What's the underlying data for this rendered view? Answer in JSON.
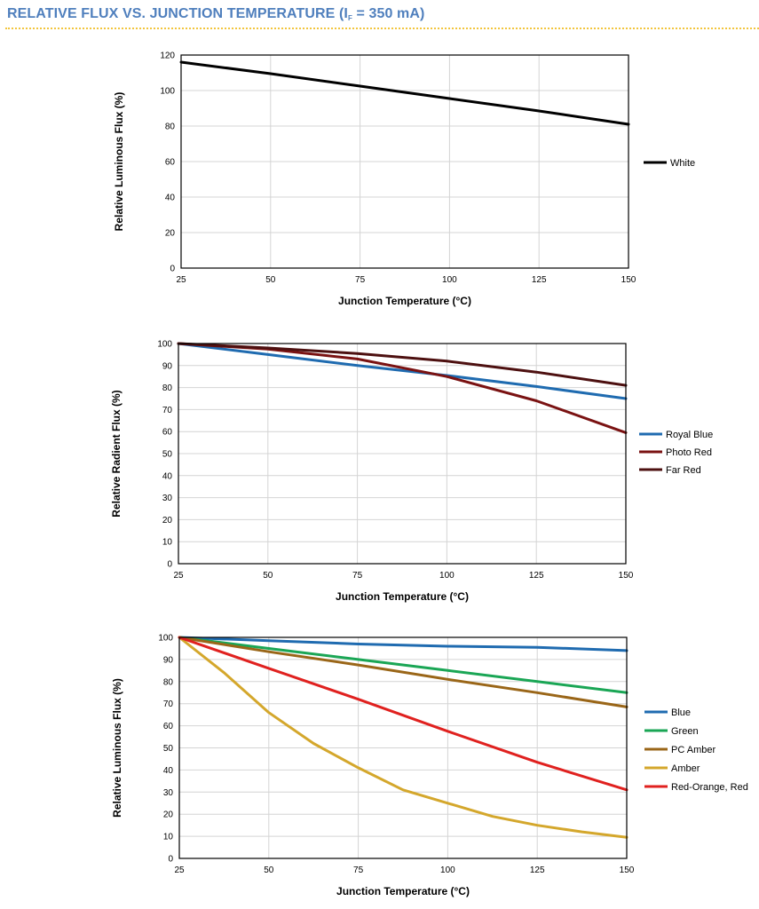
{
  "header": {
    "title_main": "RELATIVE FLUX VS. JUNCTION TEMPERATURE (I",
    "title_sub": "F",
    "title_end": " = 350 mA)",
    "rule_color": "#f2c53d",
    "title_color": "#4f7fbd"
  },
  "chart_data": [
    {
      "type": "line",
      "title": "",
      "xlabel": "Junction Temperature (°C)",
      "ylabel": "Relative Luminous Flux (%)",
      "xlim": [
        25,
        150
      ],
      "ylim": [
        0,
        120
      ],
      "xticks": [
        25,
        50,
        75,
        100,
        125,
        150
      ],
      "yticks": [
        0,
        20,
        40,
        60,
        80,
        100,
        120
      ],
      "grid": true,
      "legend": "right",
      "series": [
        {
          "name": "White",
          "color": "#000000",
          "x": [
            25,
            50,
            75,
            100,
            125,
            150
          ],
          "y": [
            116,
            109.5,
            102.5,
            95.5,
            88.5,
            81
          ]
        }
      ]
    },
    {
      "type": "line",
      "title": "",
      "xlabel": "Junction Temperature (°C)",
      "ylabel": "Relative Radient Flux (%)",
      "xlim": [
        25,
        150
      ],
      "ylim": [
        0,
        100
      ],
      "xticks": [
        25,
        50,
        75,
        100,
        125,
        150
      ],
      "yticks": [
        0,
        10,
        20,
        30,
        40,
        50,
        60,
        70,
        80,
        90,
        100
      ],
      "grid": true,
      "legend": "right",
      "series": [
        {
          "name": "Royal Blue",
          "color": "#1f6bb0",
          "x": [
            25,
            50,
            75,
            100,
            125,
            150
          ],
          "y": [
            100,
            95,
            90,
            85.5,
            80.5,
            75
          ]
        },
        {
          "name": "Photo Red",
          "color": "#7a1212",
          "x": [
            25,
            50,
            75,
            100,
            125,
            150
          ],
          "y": [
            100,
            97.5,
            93,
            85,
            74,
            59.5
          ]
        },
        {
          "name": "Far Red",
          "color": "#4d1010",
          "x": [
            25,
            50,
            75,
            100,
            125,
            150
          ],
          "y": [
            100,
            98,
            95.5,
            92,
            87,
            81
          ]
        }
      ]
    },
    {
      "type": "line",
      "title": "",
      "xlabel": "Junction Temperature (°C)",
      "ylabel": "Relative Luminous Flux (%)",
      "xlim": [
        25,
        150
      ],
      "ylim": [
        0,
        100
      ],
      "xticks": [
        25,
        50,
        75,
        100,
        125,
        150
      ],
      "yticks": [
        0,
        10,
        20,
        30,
        40,
        50,
        60,
        70,
        80,
        90,
        100
      ],
      "grid": true,
      "legend": "right",
      "series": [
        {
          "name": "Blue",
          "color": "#1f6bb0",
          "x": [
            25,
            50,
            75,
            100,
            125,
            150
          ],
          "y": [
            100,
            98.5,
            97,
            96,
            95.5,
            94
          ]
        },
        {
          "name": "Green",
          "color": "#1aa655",
          "x": [
            25,
            50,
            75,
            100,
            125,
            150
          ],
          "y": [
            100,
            95,
            90,
            85,
            80,
            75
          ]
        },
        {
          "name": "PC Amber",
          "color": "#9a6618",
          "x": [
            25,
            50,
            75,
            100,
            125,
            150
          ],
          "y": [
            100,
            93.5,
            87.5,
            81,
            75,
            68.5
          ]
        },
        {
          "name": "Amber",
          "color": "#d4a72c",
          "x": [
            25,
            37.5,
            50,
            62.5,
            75,
            87.5,
            100,
            112.5,
            125,
            137.5,
            150
          ],
          "y": [
            100,
            84,
            66,
            52,
            41,
            31,
            25,
            19,
            15,
            12,
            9.5
          ]
        },
        {
          "name": "Red-Orange, Red",
          "color": "#e0211f",
          "x": [
            25,
            50,
            75,
            100,
            125,
            150
          ],
          "y": [
            100,
            86,
            72,
            57.5,
            43.5,
            31
          ]
        }
      ]
    }
  ]
}
